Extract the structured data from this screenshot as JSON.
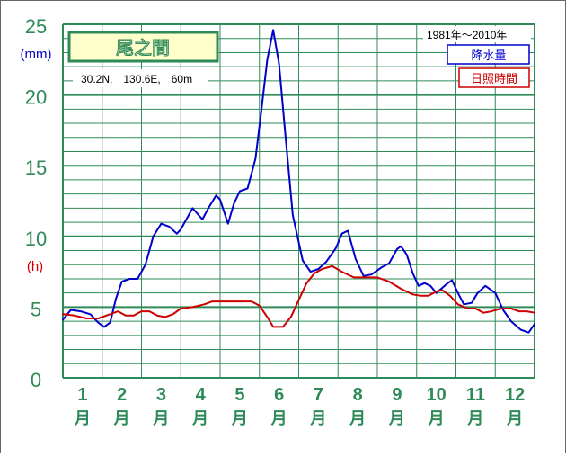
{
  "chart_data": {
    "type": "line",
    "station": {
      "name": "尾之間",
      "location": "30.2N,　130.6E,　60m"
    },
    "period": "1981年～2010年",
    "unit_precip": "(mm)",
    "unit_sun": "(h)",
    "y_ticks": [
      "0",
      "5",
      "10",
      "15",
      "20",
      "25"
    ],
    "ylim": [
      0,
      25
    ],
    "months": [
      {
        "num": "1",
        "suffix": "月"
      },
      {
        "num": "2",
        "suffix": "月"
      },
      {
        "num": "3",
        "suffix": "月"
      },
      {
        "num": "4",
        "suffix": "月"
      },
      {
        "num": "5",
        "suffix": "月"
      },
      {
        "num": "6",
        "suffix": "月"
      },
      {
        "num": "7",
        "suffix": "月"
      },
      {
        "num": "8",
        "suffix": "月"
      },
      {
        "num": "9",
        "suffix": "月"
      },
      {
        "num": "10",
        "suffix": "月"
      },
      {
        "num": "11",
        "suffix": "月"
      },
      {
        "num": "12",
        "suffix": "月"
      }
    ],
    "x_range": [
      0.5,
      12.5
    ],
    "grid": true,
    "legend_position": "top-right",
    "series": [
      {
        "name": "降水量",
        "color": "#0000cc",
        "points": [
          [
            0.5,
            4.1
          ],
          [
            0.7,
            4.8
          ],
          [
            0.95,
            4.7
          ],
          [
            1.2,
            4.5
          ],
          [
            1.4,
            3.9
          ],
          [
            1.55,
            3.6
          ],
          [
            1.7,
            3.9
          ],
          [
            1.85,
            5.6
          ],
          [
            2.0,
            6.8
          ],
          [
            2.2,
            7.0
          ],
          [
            2.4,
            7.0
          ],
          [
            2.6,
            8.0
          ],
          [
            2.8,
            10.0
          ],
          [
            3.0,
            10.9
          ],
          [
            3.2,
            10.7
          ],
          [
            3.4,
            10.2
          ],
          [
            3.5,
            10.5
          ],
          [
            3.8,
            12.0
          ],
          [
            4.05,
            11.2
          ],
          [
            4.2,
            12.0
          ],
          [
            4.4,
            12.9
          ],
          [
            4.5,
            12.6
          ],
          [
            4.7,
            10.9
          ],
          [
            4.85,
            12.3
          ],
          [
            5.0,
            13.2
          ],
          [
            5.2,
            13.4
          ],
          [
            5.4,
            15.5
          ],
          [
            5.55,
            18.9
          ],
          [
            5.7,
            22.5
          ],
          [
            5.85,
            24.6
          ],
          [
            6.0,
            22.2
          ],
          [
            6.15,
            17.5
          ],
          [
            6.35,
            11.5
          ],
          [
            6.6,
            8.3
          ],
          [
            6.8,
            7.5
          ],
          [
            7.0,
            7.7
          ],
          [
            7.2,
            8.2
          ],
          [
            7.45,
            9.2
          ],
          [
            7.6,
            10.2
          ],
          [
            7.75,
            10.4
          ],
          [
            7.95,
            8.4
          ],
          [
            8.15,
            7.2
          ],
          [
            8.35,
            7.3
          ],
          [
            8.6,
            7.8
          ],
          [
            8.8,
            8.1
          ],
          [
            9.0,
            9.1
          ],
          [
            9.1,
            9.3
          ],
          [
            9.25,
            8.7
          ],
          [
            9.4,
            7.4
          ],
          [
            9.55,
            6.5
          ],
          [
            9.7,
            6.7
          ],
          [
            9.85,
            6.5
          ],
          [
            10.0,
            6.0
          ],
          [
            10.25,
            6.6
          ],
          [
            10.4,
            6.9
          ],
          [
            10.55,
            6.0
          ],
          [
            10.7,
            5.2
          ],
          [
            10.9,
            5.3
          ],
          [
            11.05,
            6.0
          ],
          [
            11.25,
            6.5
          ],
          [
            11.5,
            6.0
          ],
          [
            11.7,
            4.8
          ],
          [
            11.9,
            4.0
          ],
          [
            12.15,
            3.4
          ],
          [
            12.35,
            3.2
          ],
          [
            12.5,
            3.8
          ]
        ]
      },
      {
        "name": "日照時間",
        "color": "#cc0000",
        "points": [
          [
            0.5,
            4.5
          ],
          [
            0.8,
            4.4
          ],
          [
            1.1,
            4.2
          ],
          [
            1.4,
            4.2
          ],
          [
            1.7,
            4.5
          ],
          [
            1.9,
            4.7
          ],
          [
            2.1,
            4.4
          ],
          [
            2.3,
            4.4
          ],
          [
            2.5,
            4.7
          ],
          [
            2.7,
            4.7
          ],
          [
            2.9,
            4.4
          ],
          [
            3.1,
            4.3
          ],
          [
            3.3,
            4.5
          ],
          [
            3.5,
            4.9
          ],
          [
            3.8,
            5.0
          ],
          [
            4.1,
            5.2
          ],
          [
            4.3,
            5.4
          ],
          [
            4.6,
            5.4
          ],
          [
            5.0,
            5.4
          ],
          [
            5.3,
            5.4
          ],
          [
            5.5,
            5.1
          ],
          [
            5.7,
            4.3
          ],
          [
            5.85,
            3.6
          ],
          [
            6.1,
            3.6
          ],
          [
            6.3,
            4.3
          ],
          [
            6.5,
            5.5
          ],
          [
            6.7,
            6.7
          ],
          [
            6.9,
            7.4
          ],
          [
            7.1,
            7.7
          ],
          [
            7.35,
            7.9
          ],
          [
            7.6,
            7.5
          ],
          [
            7.9,
            7.1
          ],
          [
            8.2,
            7.1
          ],
          [
            8.5,
            7.1
          ],
          [
            8.8,
            6.8
          ],
          [
            9.1,
            6.3
          ],
          [
            9.4,
            5.9
          ],
          [
            9.6,
            5.8
          ],
          [
            9.8,
            5.8
          ],
          [
            10.0,
            6.1
          ],
          [
            10.15,
            6.2
          ],
          [
            10.35,
            5.8
          ],
          [
            10.55,
            5.2
          ],
          [
            10.8,
            4.9
          ],
          [
            11.0,
            4.9
          ],
          [
            11.2,
            4.6
          ],
          [
            11.4,
            4.7
          ],
          [
            11.65,
            4.9
          ],
          [
            11.9,
            4.9
          ],
          [
            12.1,
            4.7
          ],
          [
            12.3,
            4.7
          ],
          [
            12.5,
            4.6
          ]
        ]
      }
    ]
  }
}
